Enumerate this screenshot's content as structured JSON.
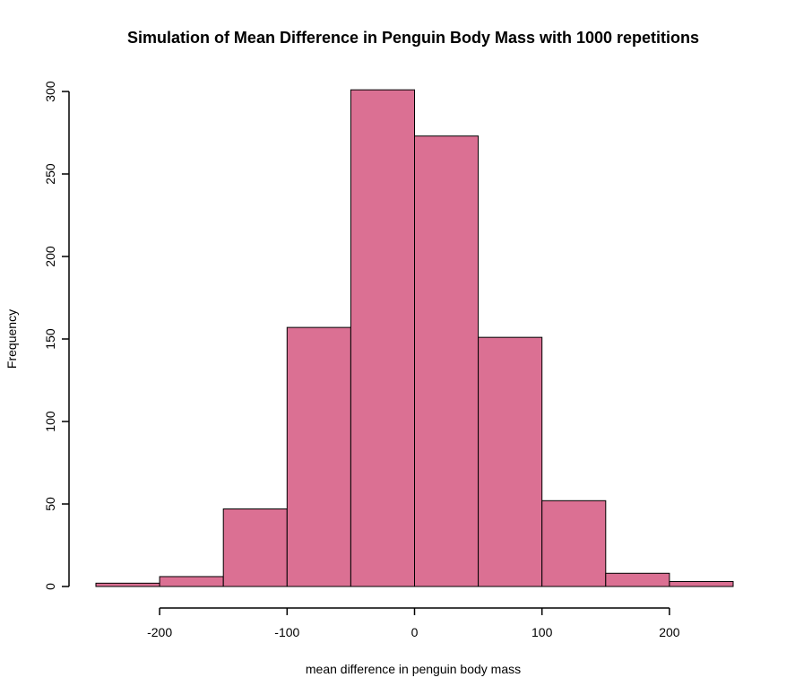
{
  "chart_data": {
    "type": "bar",
    "title": "Simulation of Mean Difference in Penguin Body Mass with 1000 repetitions",
    "xlabel": "mean difference in penguin body mass",
    "ylabel": "Frequency",
    "bins": [
      {
        "start": -250,
        "end": -200,
        "count": 2
      },
      {
        "start": -200,
        "end": -150,
        "count": 6
      },
      {
        "start": -150,
        "end": -100,
        "count": 47
      },
      {
        "start": -100,
        "end": -50,
        "count": 157
      },
      {
        "start": -50,
        "end": 0,
        "count": 301
      },
      {
        "start": 0,
        "end": 50,
        "count": 273
      },
      {
        "start": 50,
        "end": 100,
        "count": 151
      },
      {
        "start": 100,
        "end": 150,
        "count": 52
      },
      {
        "start": 150,
        "end": 200,
        "count": 8
      },
      {
        "start": 200,
        "end": 250,
        "count": 3
      }
    ],
    "x_ticks": [
      "-200",
      "-100",
      "0",
      "100",
      "200"
    ],
    "y_ticks": [
      "0",
      "50",
      "100",
      "150",
      "200",
      "250",
      "300"
    ],
    "xlim": [
      -250,
      250
    ],
    "ylim": [
      0,
      300
    ],
    "grid": false,
    "bar_color": "#DB7093",
    "bar_border_color": "#000000"
  }
}
